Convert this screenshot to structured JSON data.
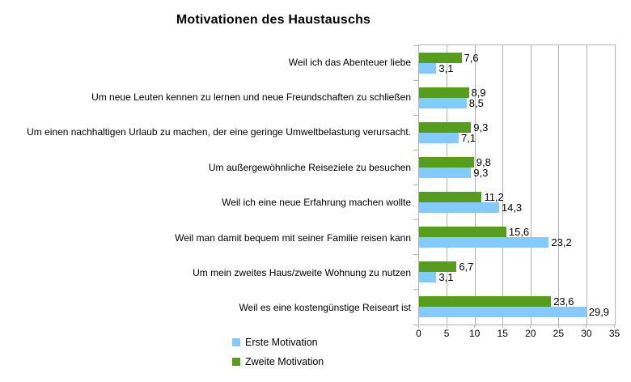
{
  "chart_data": {
    "type": "bar",
    "orientation": "horizontal",
    "title": "Motivationen des Haustauschs",
    "categories": [
      "Weil ich das Abenteuer liebe",
      "Um neue Leuten kennen zu lernen und neue Freundschaften zu schließen",
      "Um einen nachhaltigen Urlaub zu machen, der eine geringe Umweltbelastung verursacht.",
      "Um außergewöhnliche Reiseziele zu besuchen",
      "Weil ich eine neue Erfahrung machen wollte",
      "Weil man damit bequem mit seiner Familie reisen kann",
      "Um mein zweites Haus/zweite Wohnung zu nutzen",
      "Weil es eine kostengünstige Reiseart ist"
    ],
    "series": [
      {
        "name": "Erste Motivation",
        "color": "#83CAFF",
        "values": [
          3.1,
          8.5,
          7.1,
          9.3,
          14.3,
          23.2,
          3.1,
          29.9
        ],
        "labels": [
          "3,1",
          "8,5",
          "7,1",
          "9,3",
          "14,3",
          "23,2",
          "3,1",
          "29,9"
        ]
      },
      {
        "name": "Zweite Motivation",
        "color": "#579D1C",
        "values": [
          7.6,
          8.9,
          9.3,
          9.8,
          11.2,
          15.6,
          6.7,
          23.6
        ],
        "labels": [
          "7,6",
          "8,9",
          "9,3",
          "9,8",
          "11,2",
          "15,6",
          "6,7",
          "23,6"
        ]
      }
    ],
    "bar_display_order_top_to_bottom": [
      "Zweite Motivation",
      "Erste Motivation"
    ],
    "xlim": [
      0,
      35
    ],
    "x_ticks": [
      "0",
      "5",
      "10",
      "15",
      "20",
      "25",
      "30",
      "35"
    ],
    "grid": "vertical",
    "legend_position": "bottom-left",
    "colors": {
      "grid": "#B3B3B3",
      "text": "#000000",
      "background": "#FFFFFF"
    }
  }
}
